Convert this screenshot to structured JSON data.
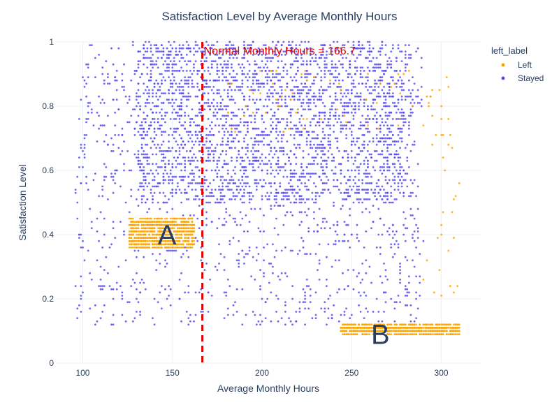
{
  "chart_data": {
    "type": "scatter",
    "title": "Satisfaction Level by Average Monthly Hours",
    "xlabel": "Average Monthly Hours",
    "ylabel": "Satisfaction Level",
    "xlim": [
      85,
      322
    ],
    "ylim": [
      0,
      1
    ],
    "x_ticks": [
      "100",
      "150",
      "200",
      "250",
      "300"
    ],
    "y_ticks": [
      "0",
      "0.2",
      "0.4",
      "0.6",
      "0.8",
      "1"
    ],
    "grid": true,
    "legend": {
      "title": "left_label",
      "placement": "top-right",
      "entries": [
        "Left",
        "Stayed"
      ]
    },
    "series": [
      {
        "name": "Left",
        "color": "#ffa500",
        "clusters": [
          {
            "x_range": [
              126,
              162
            ],
            "y_range": [
              0.36,
              0.45
            ],
            "density": "dense"
          },
          {
            "x_range": [
              244,
              310
            ],
            "y_range": [
              0.09,
              0.12
            ],
            "density": "dense"
          },
          {
            "x_range": [
              180,
              290
            ],
            "y_range": [
              0.72,
              0.92
            ],
            "density": "medium"
          },
          {
            "x_range": [
              290,
              310
            ],
            "y_range": [
              0.2,
              0.95
            ],
            "density": "sparse"
          }
        ]
      },
      {
        "name": "Stayed",
        "color": "#5a4cf0",
        "clusters": [
          {
            "x_range": [
              96,
              288
            ],
            "y_range": [
              0.12,
              1.0
            ],
            "density": "medium"
          },
          {
            "x_range": [
              130,
              280
            ],
            "y_range": [
              0.5,
              1.0
            ],
            "density": "dense"
          },
          {
            "x_range": [
              280,
              290
            ],
            "y_range": [
              0.12,
              0.99
            ],
            "density": "sparse"
          }
        ]
      }
    ],
    "reference_line": {
      "x": 166.7,
      "label": "Normal Monthly Hours = 166.7",
      "color": "#e00000",
      "style": "dashed"
    },
    "annotations": [
      {
        "text": "A",
        "x": 147,
        "y": 0.4
      },
      {
        "text": "B",
        "x": 266,
        "y": 0.09
      }
    ]
  }
}
